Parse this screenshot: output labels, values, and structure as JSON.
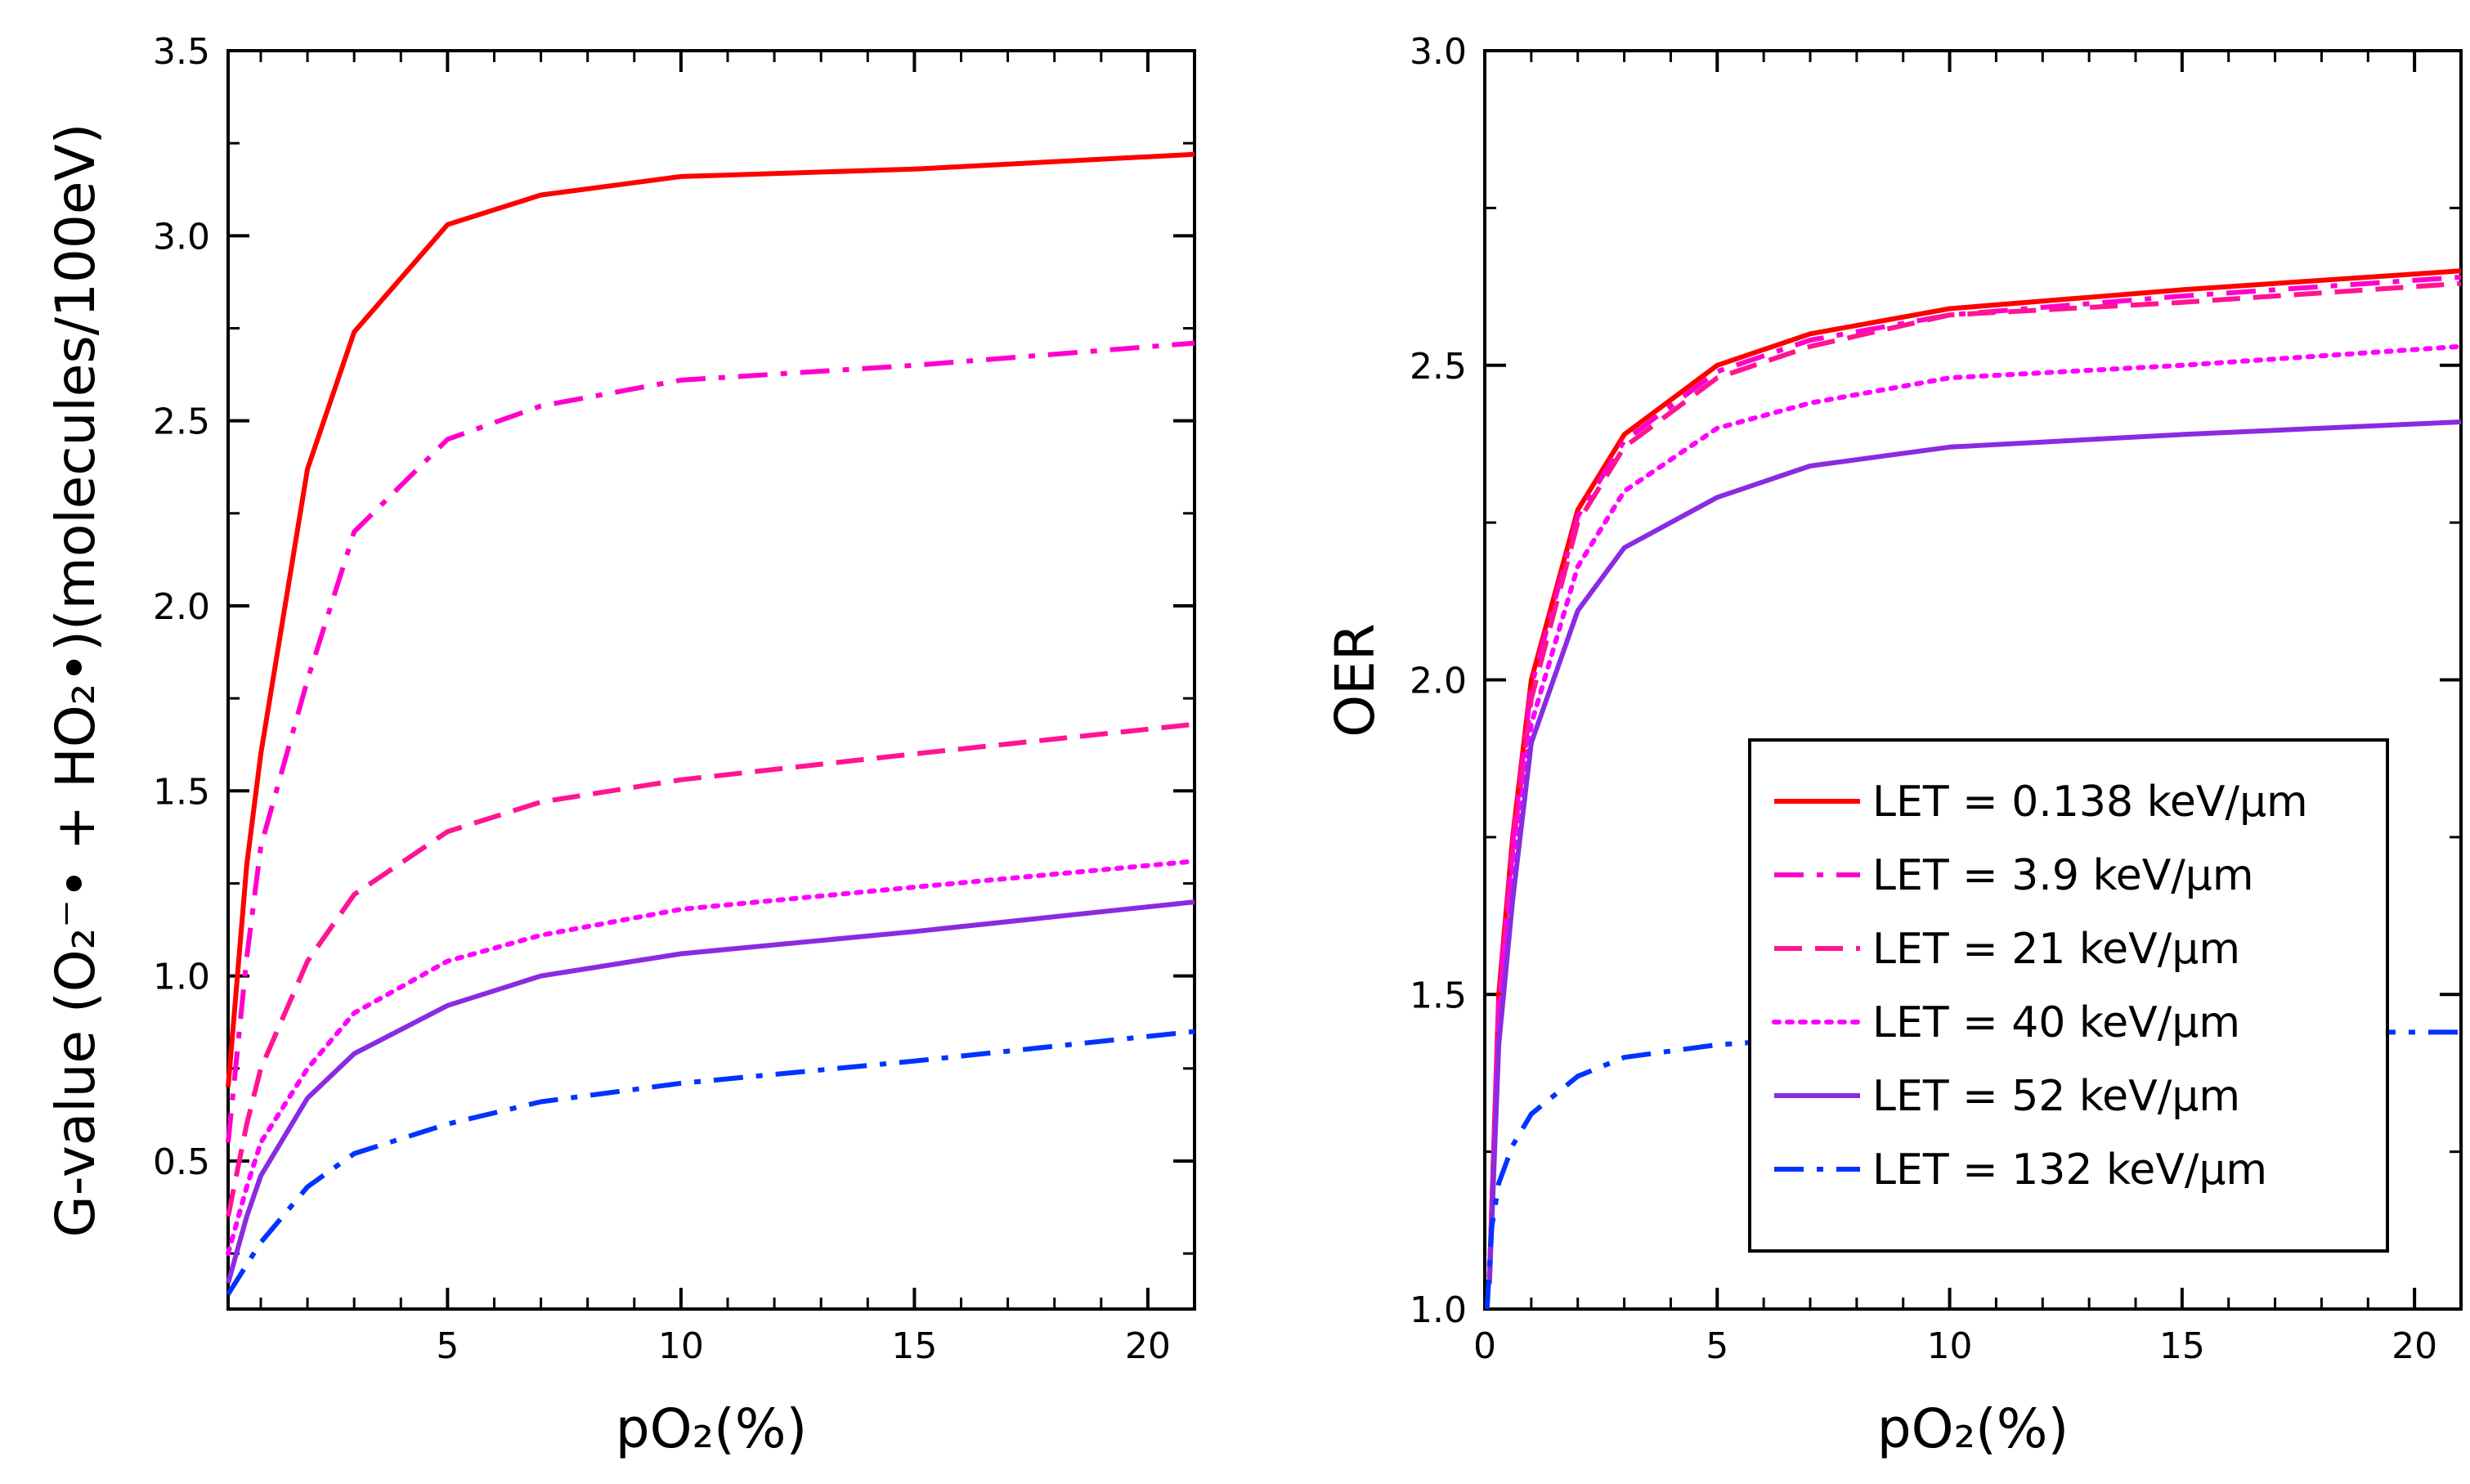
{
  "chart_data": [
    {
      "type": "line",
      "panel": "left",
      "xlabel": "pO₂(%)",
      "ylabel": "G-value (O₂⁻• + HO₂•)(molecules/100eV)",
      "xlim": [
        0.3,
        21
      ],
      "ylim": [
        0.1,
        3.5
      ],
      "xticks": [
        5,
        10,
        15,
        20
      ],
      "yticks": [
        0.5,
        1.0,
        1.5,
        2.0,
        2.5,
        3.0,
        3.5
      ],
      "ytick_labels": [
        "0.5",
        "1.0",
        "1.5",
        "2.0",
        "2.5",
        "3.0",
        "3.5"
      ],
      "xtick_labels": [
        "5",
        "10",
        "15",
        "20"
      ],
      "series": [
        {
          "name": "LET = 0.138 keV/µm",
          "color": "#ff0000",
          "dash": "solid",
          "x": [
            0.3,
            0.7,
            1,
            2,
            3,
            5,
            7,
            10,
            15,
            21
          ],
          "y": [
            0.7,
            1.3,
            1.6,
            2.37,
            2.74,
            3.03,
            3.11,
            3.16,
            3.18,
            3.22
          ]
        },
        {
          "name": "LET = 3.9 keV/µm",
          "color": "#ff00cc",
          "dash": "dashdot",
          "x": [
            0.3,
            0.7,
            1,
            2,
            3,
            5,
            7,
            10,
            15,
            21
          ],
          "y": [
            0.55,
            1.05,
            1.35,
            1.8,
            2.2,
            2.45,
            2.54,
            2.61,
            2.65,
            2.71
          ]
        },
        {
          "name": "LET = 21 keV/µm",
          "color": "#ff1493",
          "dash": "dashed",
          "x": [
            0.3,
            0.7,
            1,
            2,
            3,
            5,
            7,
            10,
            15,
            21
          ],
          "y": [
            0.35,
            0.6,
            0.75,
            1.04,
            1.22,
            1.39,
            1.47,
            1.53,
            1.6,
            1.68
          ]
        },
        {
          "name": "LET = 40 keV/µm",
          "color": "#ff00ff",
          "dash": "dotted",
          "x": [
            0.3,
            0.7,
            1,
            2,
            3,
            5,
            7,
            10,
            15,
            21
          ],
          "y": [
            0.25,
            0.43,
            0.55,
            0.75,
            0.9,
            1.04,
            1.11,
            1.18,
            1.24,
            1.31
          ]
        },
        {
          "name": "LET = 52 keV/µm",
          "color": "#8a2be2",
          "dash": "solid",
          "x": [
            0.3,
            0.7,
            1,
            2,
            3,
            5,
            7,
            10,
            15,
            21
          ],
          "y": [
            0.17,
            0.35,
            0.46,
            0.67,
            0.79,
            0.92,
            1.0,
            1.06,
            1.12,
            1.2
          ]
        },
        {
          "name": "LET = 132 keV/µm",
          "color": "#0033ff",
          "dash": "dashdot",
          "x": [
            0.3,
            0.7,
            1,
            2,
            3,
            5,
            7,
            10,
            15,
            21
          ],
          "y": [
            0.14,
            0.22,
            0.28,
            0.43,
            0.52,
            0.6,
            0.66,
            0.71,
            0.77,
            0.85
          ]
        }
      ]
    },
    {
      "type": "line",
      "panel": "right",
      "xlabel": "pO₂(%)",
      "ylabel": "OER",
      "xlim": [
        0,
        21
      ],
      "ylim": [
        1.0,
        3.0
      ],
      "xticks": [
        0,
        5,
        10,
        15,
        20
      ],
      "yticks": [
        1.0,
        1.5,
        2.0,
        2.5,
        3.0
      ],
      "ytick_labels": [
        "1.0",
        "1.5",
        "2.0",
        "2.5",
        "3.0"
      ],
      "xtick_labels": [
        "0",
        "5",
        "10",
        "15",
        "20"
      ],
      "legend_position": "bottom-right",
      "series": [
        {
          "name": "LET = 0.138 keV/µm",
          "color": "#ff0000",
          "dash": "solid",
          "x": [
            0.1,
            0.3,
            0.6,
            1,
            2,
            3,
            5,
            7,
            10,
            15,
            21
          ],
          "y": [
            1.05,
            1.5,
            1.75,
            2.0,
            2.27,
            2.39,
            2.5,
            2.55,
            2.59,
            2.62,
            2.65
          ]
        },
        {
          "name": "LET = 3.9 keV/µm",
          "color": "#ff00cc",
          "dash": "dashdot",
          "x": [
            0.1,
            0.3,
            0.6,
            1,
            2,
            3,
            5,
            7,
            10,
            15,
            21
          ],
          "y": [
            1.05,
            1.49,
            1.74,
            1.99,
            2.26,
            2.38,
            2.49,
            2.54,
            2.58,
            2.61,
            2.64
          ]
        },
        {
          "name": "LET = 21 keV/µm",
          "color": "#ff1493",
          "dash": "dashed",
          "x": [
            0.1,
            0.3,
            0.6,
            1,
            2,
            3,
            5,
            7,
            10,
            15,
            21
          ],
          "y": [
            1.05,
            1.48,
            1.73,
            1.97,
            2.25,
            2.37,
            2.48,
            2.53,
            2.58,
            2.6,
            2.63
          ]
        },
        {
          "name": "LET = 40 keV/µm",
          "color": "#ff00ff",
          "dash": "dotted",
          "x": [
            0.1,
            0.3,
            0.6,
            1,
            2,
            3,
            5,
            7,
            10,
            15,
            21
          ],
          "y": [
            1.05,
            1.46,
            1.7,
            1.93,
            2.18,
            2.3,
            2.4,
            2.44,
            2.48,
            2.5,
            2.53
          ]
        },
        {
          "name": "LET = 52 keV/µm",
          "color": "#8a2be2",
          "dash": "solid",
          "x": [
            0.1,
            0.3,
            0.6,
            1,
            2,
            3,
            5,
            7,
            10,
            15,
            21
          ],
          "y": [
            1.04,
            1.42,
            1.65,
            1.9,
            2.11,
            2.21,
            2.29,
            2.34,
            2.37,
            2.39,
            2.41
          ]
        },
        {
          "name": "LET = 132 keV/µm",
          "color": "#0033ff",
          "dash": "dashdot",
          "x": [
            0.05,
            0.15,
            0.3,
            0.6,
            1,
            2,
            3,
            5,
            7,
            10,
            15,
            21
          ],
          "y": [
            1.0,
            1.13,
            1.2,
            1.26,
            1.31,
            1.37,
            1.4,
            1.42,
            1.43,
            1.43,
            1.44,
            1.44
          ]
        }
      ]
    }
  ]
}
